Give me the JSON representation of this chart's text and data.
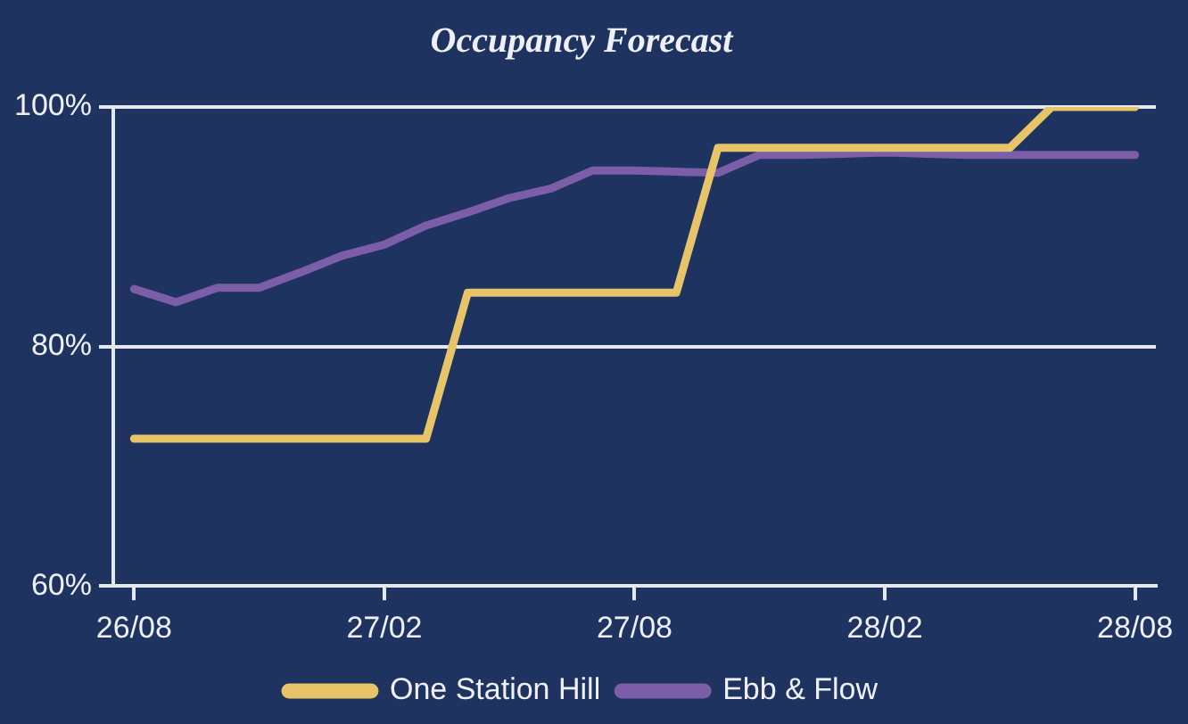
{
  "chart_data": {
    "type": "line",
    "title": "Occupancy Forecast",
    "categories": [
      "26/08",
      null,
      null,
      null,
      null,
      null,
      "27/02",
      null,
      null,
      null,
      null,
      null,
      "27/08",
      null,
      null,
      null,
      null,
      null,
      "28/02",
      null,
      null,
      null,
      null,
      null,
      "28/08"
    ],
    "ylim": [
      60,
      100
    ],
    "yticks": [
      {
        "value": 60,
        "label": "60%"
      },
      {
        "value": 80,
        "label": "80%"
      },
      {
        "value": 100,
        "label": "100%"
      }
    ],
    "series": [
      {
        "name": "One Station Hill",
        "color": "#e8c468",
        "values": [
          72.3,
          72.3,
          72.3,
          72.3,
          72.3,
          72.3,
          72.3,
          72.3,
          84.5,
          84.5,
          84.5,
          84.5,
          84.5,
          84.5,
          96.6,
          96.6,
          96.6,
          96.6,
          96.6,
          96.6,
          96.6,
          96.6,
          100,
          100,
          100
        ]
      },
      {
        "name": "Ebb & Flow",
        "color": "#7b5ea7",
        "values": [
          84.8,
          83.7,
          84.9,
          84.9,
          86.2,
          87.6,
          88.5,
          90.1,
          91.2,
          92.4,
          93.2,
          94.7,
          94.7,
          94.6,
          94.5,
          96.0,
          96.0,
          96.1,
          96.2,
          96.1,
          96.0,
          96.0,
          96.0,
          96.0,
          96.0
        ]
      }
    ],
    "grid": "y",
    "legend": "bottom",
    "marker": "none",
    "line_style": "solid"
  }
}
